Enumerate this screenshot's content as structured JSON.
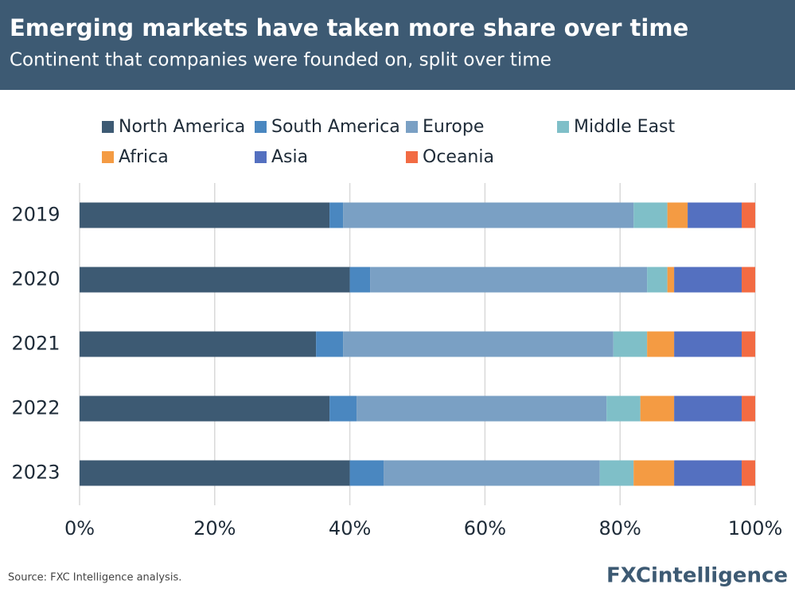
{
  "chart_data": {
    "type": "stacked-bar-horizontal",
    "title": "Emerging markets have taken more share over time",
    "subtitle": "Continent that companies were founded on, split over time",
    "source": "Source: FXC Intelligence analysis.",
    "logo": "FXCintelligence",
    "categories": [
      "2019",
      "2020",
      "2021",
      "2022",
      "2023"
    ],
    "series": [
      {
        "name": "North America",
        "color": "#3d5a73",
        "values": [
          37,
          40,
          35,
          37,
          40
        ]
      },
      {
        "name": "South America",
        "color": "#4a87c0",
        "values": [
          2,
          3,
          4,
          4,
          5
        ]
      },
      {
        "name": "Europe",
        "color": "#7aa0c4",
        "values": [
          43,
          41,
          40,
          37,
          32
        ]
      },
      {
        "name": "Middle East",
        "color": "#7fbfc8",
        "values": [
          5,
          3,
          5,
          5,
          5
        ]
      },
      {
        "name": "Africa",
        "color": "#f49b43",
        "values": [
          3,
          1,
          4,
          5,
          6
        ]
      },
      {
        "name": "Asia",
        "color": "#5470c0",
        "values": [
          8,
          10,
          10,
          10,
          10
        ]
      },
      {
        "name": "Oceania",
        "color": "#f26b43",
        "values": [
          2,
          2,
          2,
          2,
          2
        ]
      }
    ],
    "xlim": [
      0,
      100
    ],
    "xticks": [
      {
        "value": 0,
        "label": "0%"
      },
      {
        "value": 20,
        "label": "20%"
      },
      {
        "value": 40,
        "label": "40%"
      },
      {
        "value": 60,
        "label": "60%"
      },
      {
        "value": 80,
        "label": "80%"
      },
      {
        "value": 100,
        "label": "100%"
      }
    ],
    "grid": true
  }
}
